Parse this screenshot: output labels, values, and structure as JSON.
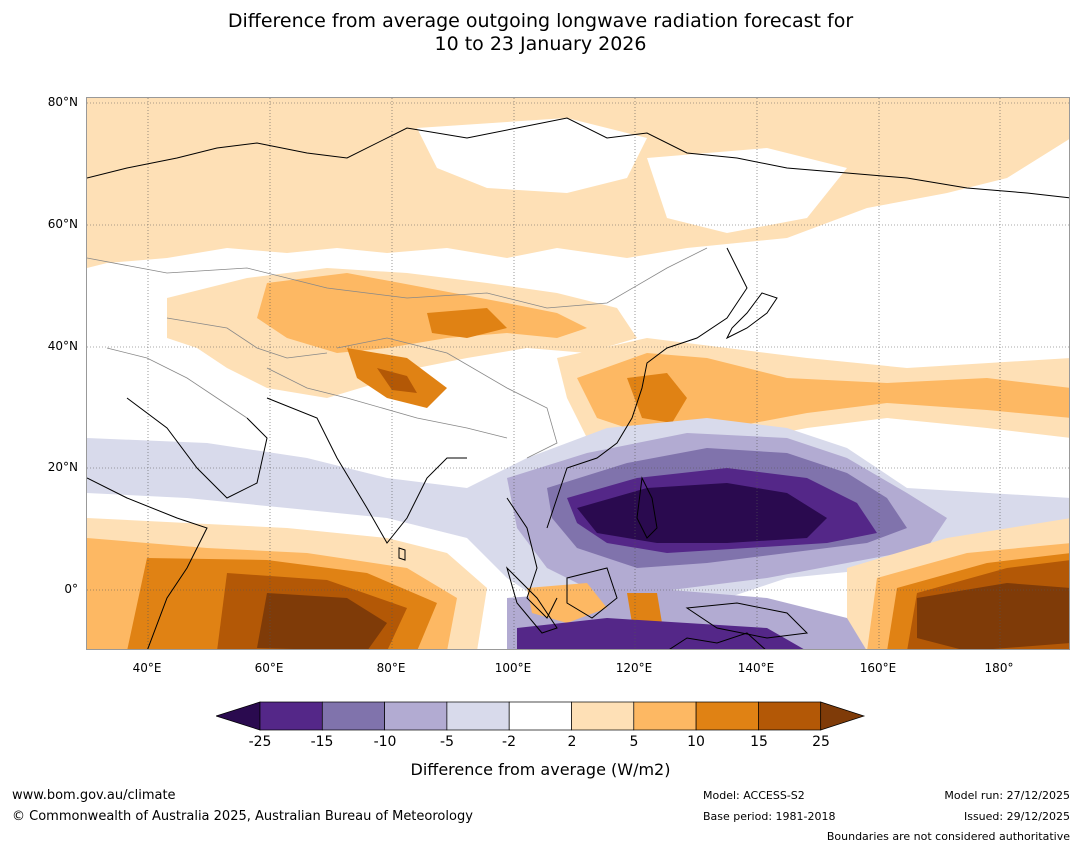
{
  "title": {
    "line1": "Difference from average outgoing longwave radiation forecast for",
    "line2": "10 to 23 January 2026"
  },
  "map": {
    "lat_labels": [
      "80°N",
      "60°N",
      "40°N",
      "20°N",
      "0°"
    ],
    "lon_labels": [
      "40°E",
      "60°E",
      "80°E",
      "100°E",
      "120°E",
      "140°E",
      "160°E",
      "180°"
    ]
  },
  "colorbar": {
    "ticks": [
      "-25",
      "-15",
      "-10",
      "-5",
      "-2",
      "2",
      "5",
      "10",
      "15",
      "25"
    ],
    "colors": {
      "lt_neg25": "#2a0a4f",
      "neg25_neg15": "#542788",
      "neg15_neg10": "#8073ac",
      "neg10_neg5": "#b2abd2",
      "neg5_neg2": "#d8daeb",
      "neg2_2": "#ffffff",
      "p2_5": "#fee0b6",
      "p5_10": "#fdb863",
      "p10_15": "#e08214",
      "p15_25": "#b35806",
      "gt_25": "#7f3b08"
    },
    "title": "Difference from average (W/m2)"
  },
  "footer": {
    "url": "www.bom.gov.au/climate",
    "copyright": "© Commonwealth of Australia 2025, Australian Bureau of Meteorology",
    "model": "Model: ACCESS-S2",
    "base_period": "Base period: 1981-2018",
    "model_run": "Model run: 27/12/2025",
    "issued": "Issued: 29/12/2025",
    "disclaimer": "Boundaries are not considered authoritative"
  }
}
